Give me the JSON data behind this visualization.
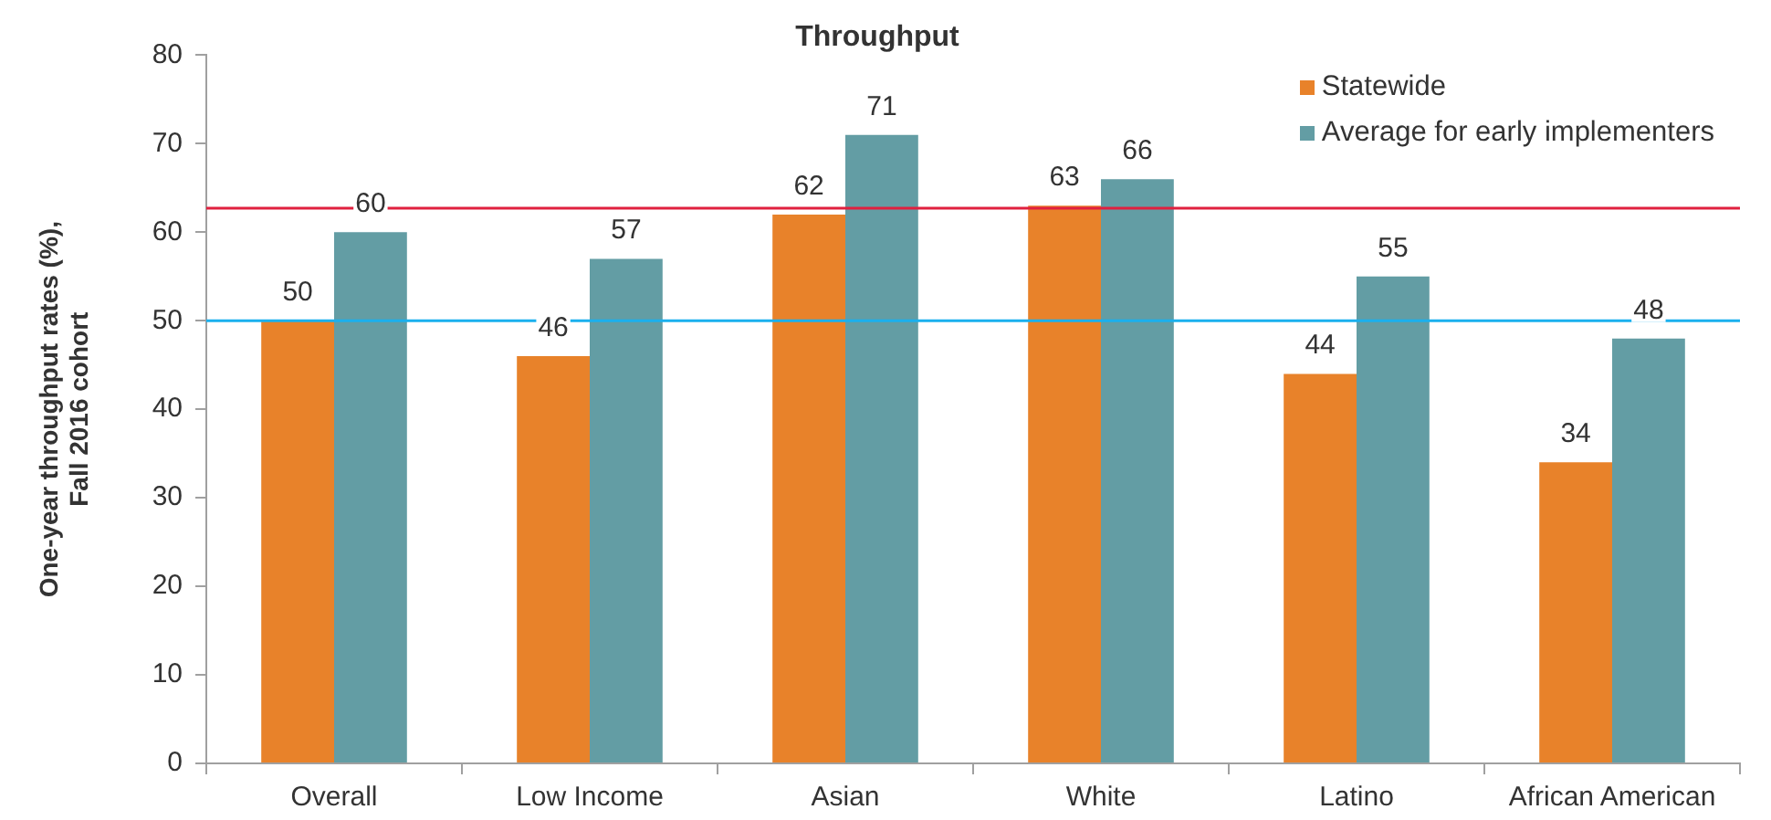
{
  "chart_data": {
    "type": "bar",
    "title": "Throughput",
    "ylabel": "One-year throughput rates (%), Fall 2016 cohort",
    "categories": [
      "Overall",
      "Low Income",
      "Asian",
      "White",
      "Latino",
      "African American"
    ],
    "series": [
      {
        "name": "Statewide",
        "color": "#e8822a",
        "values": [
          50,
          46,
          62,
          63,
          44,
          34
        ]
      },
      {
        "name": "Average for early implementers",
        "color": "#639da4",
        "values": [
          60,
          57,
          71,
          66,
          55,
          48
        ]
      }
    ],
    "ylim": [
      0,
      80
    ],
    "yticks": [
      0,
      10,
      20,
      30,
      40,
      50,
      60,
      70,
      80
    ],
    "grid": false,
    "legend": "top right",
    "data_labels": true,
    "ref_lines": [
      {
        "axis": "y",
        "value": 50,
        "color": "#1ab0ee"
      },
      {
        "axis": "y",
        "value": 62.7,
        "color": "#e0203f"
      }
    ]
  }
}
